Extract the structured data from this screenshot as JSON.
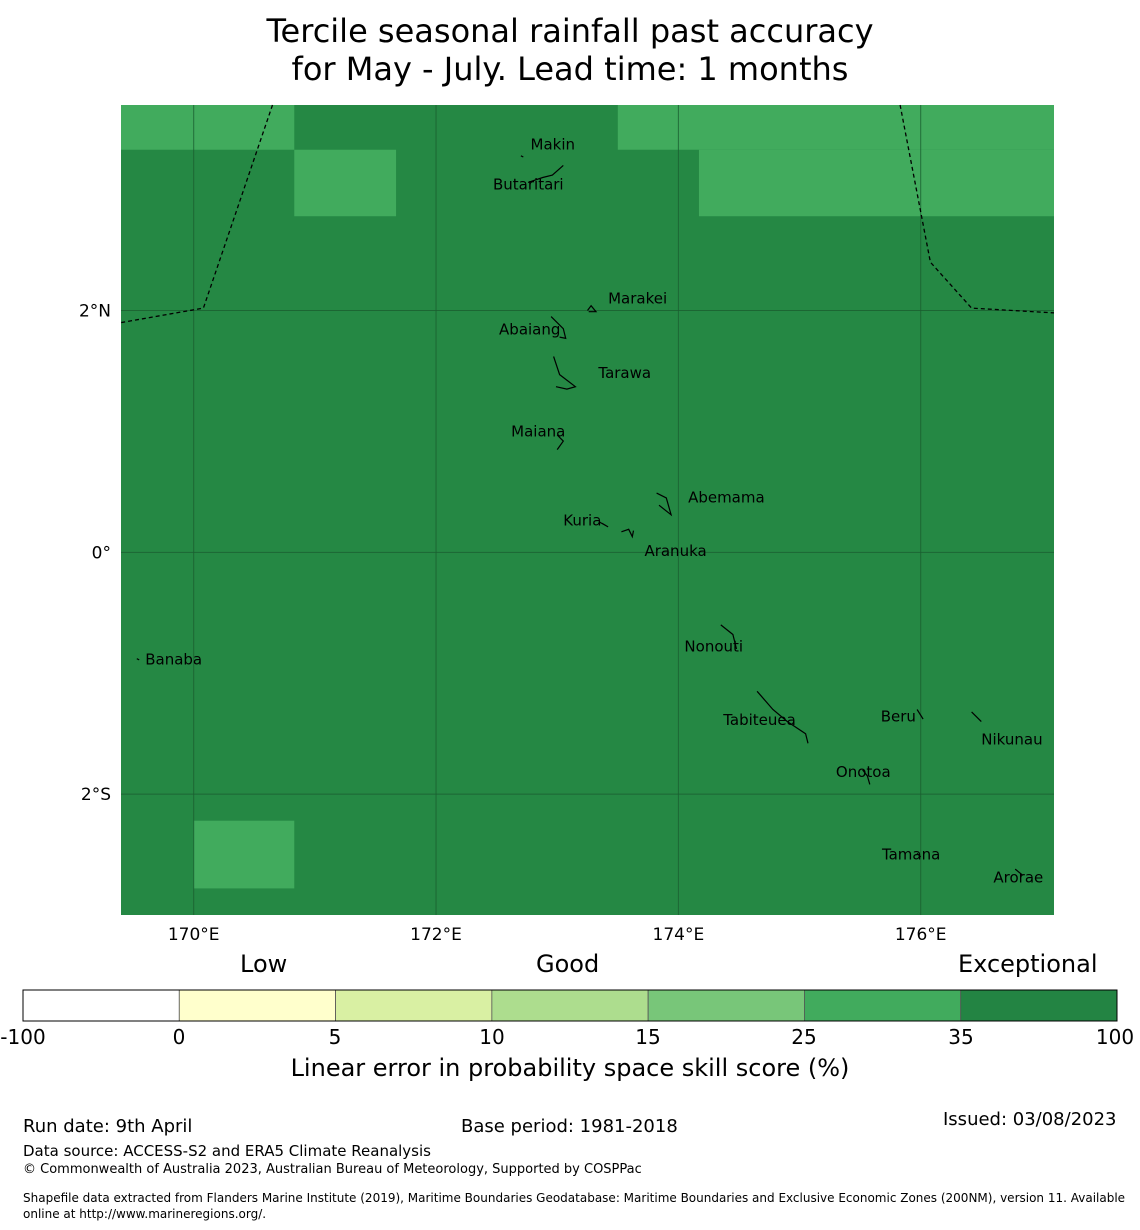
{
  "title_line1": "Tercile seasonal rainfall past accuracy",
  "title_line2": "for May - July. Lead time: 1 months",
  "map": {
    "lon_range": [
      169.4,
      177.1
    ],
    "lat_range": [
      -3.0,
      3.7
    ],
    "base_color": "#258844",
    "cells": [
      {
        "lon": [
          169.4,
          170.83
        ],
        "lat": [
          3.33,
          3.7
        ],
        "color": "#41ab5d"
      },
      {
        "lon": [
          170.83,
          171.67
        ],
        "lat": [
          2.78,
          3.33
        ],
        "color": "#41ab5d"
      },
      {
        "lon": [
          173.5,
          177.1
        ],
        "lat": [
          3.33,
          3.7
        ],
        "color": "#41ab5d"
      },
      {
        "lon": [
          174.17,
          177.1
        ],
        "lat": [
          2.78,
          3.33
        ],
        "color": "#41ab5d"
      },
      {
        "lon": [
          170.0,
          170.83
        ],
        "lat": [
          -2.78,
          -2.22
        ],
        "color": "#41ab5d"
      }
    ],
    "gridlines_lon": [
      170,
      172,
      174,
      176
    ],
    "gridlines_lat": [
      2,
      0,
      -2
    ],
    "x_ticks": [
      {
        "lon": 170,
        "label": "170°E"
      },
      {
        "lon": 172,
        "label": "172°E"
      },
      {
        "lon": 174,
        "label": "174°E"
      },
      {
        "lon": 176,
        "label": "176°E"
      }
    ],
    "y_ticks": [
      {
        "lat": 2,
        "label": "2°N"
      },
      {
        "lat": 0,
        "label": "0°"
      },
      {
        "lat": -2,
        "label": "2°S"
      }
    ],
    "boundaries": [
      [
        [
          170.65,
          3.7
        ],
        [
          170.08,
          2.02
        ],
        [
          169.4,
          1.9
        ]
      ],
      [
        [
          175.83,
          3.7
        ],
        [
          176.08,
          2.4
        ],
        [
          176.42,
          2.02
        ],
        [
          177.1,
          1.98
        ]
      ]
    ],
    "islands": [
      {
        "name": "Makin",
        "label_at": [
          172.78,
          3.33
        ],
        "shape": [
          [
            172.7,
            3.28
          ],
          [
            172.72,
            3.27
          ]
        ]
      },
      {
        "name": "Butaritari",
        "label_at": [
          172.47,
          3.0
        ],
        "shape": [
          [
            172.76,
            3.06
          ],
          [
            172.88,
            3.1
          ],
          [
            172.96,
            3.12
          ],
          [
            173.05,
            3.2
          ]
        ]
      },
      {
        "name": "Marakei",
        "label_at": [
          173.42,
          2.06
        ],
        "shape": [
          [
            173.25,
            2.0
          ],
          [
            173.28,
            2.04
          ],
          [
            173.32,
            1.99
          ],
          [
            173.26,
            1.99
          ]
        ]
      },
      {
        "name": "Abaiang",
        "label_at": [
          172.52,
          1.8
        ],
        "shape": [
          [
            172.95,
            1.95
          ],
          [
            173.05,
            1.85
          ],
          [
            173.07,
            1.77
          ],
          [
            173.02,
            1.78
          ]
        ]
      },
      {
        "name": "Tarawa",
        "label_at": [
          173.34,
          1.44
        ],
        "shape": [
          [
            172.97,
            1.62
          ],
          [
            173.02,
            1.47
          ],
          [
            173.15,
            1.37
          ],
          [
            173.08,
            1.35
          ],
          [
            172.99,
            1.37
          ]
        ]
      },
      {
        "name": "Maiana",
        "label_at": [
          172.62,
          0.96
        ],
        "shape": [
          [
            173.0,
            0.97
          ],
          [
            173.05,
            0.92
          ],
          [
            173.0,
            0.85
          ]
        ]
      },
      {
        "name": "Abemama",
        "label_at": [
          174.08,
          0.41
        ],
        "shape": [
          [
            173.82,
            0.49
          ],
          [
            173.9,
            0.45
          ],
          [
            173.94,
            0.31
          ],
          [
            173.84,
            0.39
          ]
        ]
      },
      {
        "name": "Kuria",
        "label_at": [
          173.05,
          0.22
        ],
        "shape": [
          [
            173.35,
            0.25
          ],
          [
            173.42,
            0.21
          ],
          [
            173.37,
            0.24
          ]
        ]
      },
      {
        "name": "Aranuka",
        "label_at": [
          173.72,
          -0.03
        ],
        "shape": [
          [
            173.53,
            0.17
          ],
          [
            173.59,
            0.19
          ],
          [
            173.62,
            0.13
          ],
          [
            173.63,
            0.18
          ]
        ]
      },
      {
        "name": "Nonouti",
        "label_at": [
          174.05,
          -0.82
        ],
        "shape": [
          [
            174.35,
            -0.6
          ],
          [
            174.45,
            -0.68
          ],
          [
            174.48,
            -0.8
          ]
        ]
      },
      {
        "name": "Tabiteuea",
        "label_at": [
          174.37,
          -1.43
        ],
        "shape": [
          [
            174.65,
            -1.15
          ],
          [
            174.78,
            -1.3
          ],
          [
            174.9,
            -1.4
          ],
          [
            175.05,
            -1.5
          ],
          [
            175.07,
            -1.58
          ]
        ]
      },
      {
        "name": "Beru",
        "label_at": [
          175.67,
          -1.4
        ],
        "shape": [
          [
            175.97,
            -1.3
          ],
          [
            176.02,
            -1.38
          ]
        ]
      },
      {
        "name": "Nikunau",
        "label_at": [
          176.5,
          -1.59
        ],
        "shape": [
          [
            176.42,
            -1.32
          ],
          [
            176.5,
            -1.4
          ]
        ]
      },
      {
        "name": "Onotoa",
        "label_at": [
          175.3,
          -1.86
        ],
        "shape": [
          [
            175.52,
            -1.8
          ],
          [
            175.56,
            -1.85
          ],
          [
            175.58,
            -1.92
          ]
        ]
      },
      {
        "name": "Tamana",
        "label_at": [
          175.68,
          -2.54
        ],
        "shape": [
          [
            175.97,
            -2.49
          ],
          [
            176.0,
            -2.52
          ]
        ]
      },
      {
        "name": "Arorae",
        "label_at": [
          176.6,
          -2.73
        ],
        "shape": [
          [
            176.78,
            -2.62
          ],
          [
            176.84,
            -2.67
          ]
        ]
      },
      {
        "name": "Banaba",
        "label_at": [
          169.6,
          -0.93
        ],
        "shape": [
          [
            169.53,
            -0.88
          ],
          [
            169.55,
            -0.89
          ]
        ]
      }
    ]
  },
  "colorbar": {
    "categories": [
      "Low",
      "Good",
      "Exceptional"
    ],
    "boundaries": [
      "-100",
      "0",
      "5",
      "10",
      "15",
      "25",
      "35",
      "100"
    ],
    "colors": [
      "#ffffff",
      "#ffffcc",
      "#d9f0a3",
      "#addd8e",
      "#78c679",
      "#41ab5d",
      "#238443"
    ],
    "label": "Linear error in probability space skill score (%)"
  },
  "footer": {
    "run_date": "Run date: 9th April",
    "base_period": "Base period: 1981-2018",
    "issued": "Issued: 03/08/2023",
    "data_source": "Data source: ACCESS-S2 and ERA5 Climate Reanalysis",
    "copyright": "© Commonwealth of Australia 2023, Australian Bureau of Meteorology, Supported by COSPPac",
    "shapefile_line1": "Shapefile data extracted from Flanders Marine Institute (2019), Maritime Boundaries Geodatabase: Maritime Boundaries and Exclusive Economic Zones (200NM), version 11. Available",
    "shapefile_line2": "online at http://www.marineregions.org/."
  }
}
